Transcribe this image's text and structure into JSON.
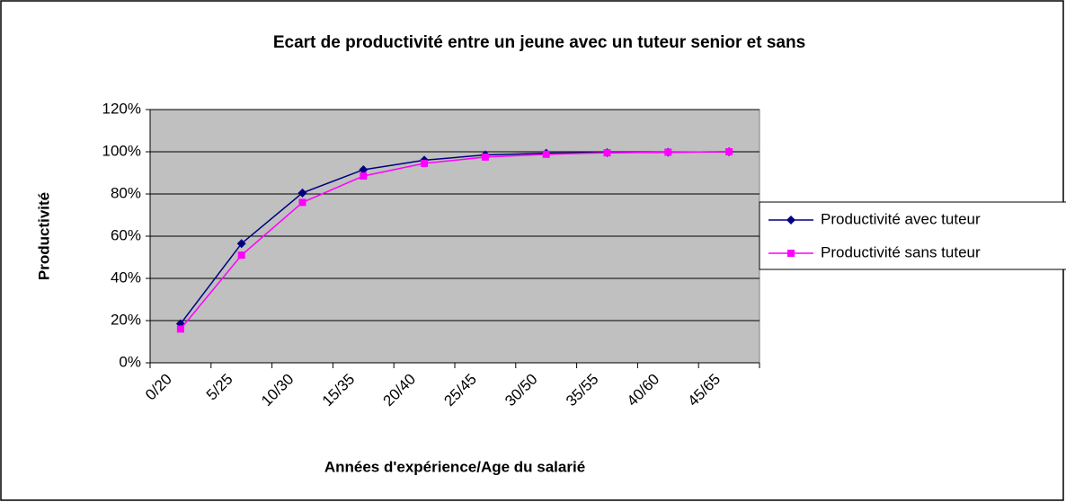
{
  "chart_data": {
    "type": "line",
    "title": "Ecart de productivité entre un jeune avec un tuteur senior et sans",
    "xlabel": "Années d'expérience/Age du salarié",
    "ylabel": "Productivité",
    "categories": [
      "0/20",
      "5/25",
      "10/30",
      "15/35",
      "20/40",
      "25/45",
      "30/50",
      "35/55",
      "40/60",
      "45/65"
    ],
    "series": [
      {
        "name": "Productivité avec tuteur",
        "color": "#000080",
        "marker": "diamond",
        "values": [
          18.5,
          56.5,
          80.5,
          91.5,
          96,
          98.5,
          99.3,
          99.6,
          99.8,
          100
        ]
      },
      {
        "name": "Productivité sans tuteur",
        "color": "#ff00ff",
        "marker": "square",
        "values": [
          16,
          51,
          76,
          88.5,
          94.5,
          97.5,
          98.8,
          99.5,
          99.8,
          100
        ]
      }
    ],
    "ylim": [
      0,
      120
    ],
    "yticks": [
      {
        "value": 0,
        "label": "0%"
      },
      {
        "value": 20,
        "label": "20%"
      },
      {
        "value": 40,
        "label": "40%"
      },
      {
        "value": 60,
        "label": "60%"
      },
      {
        "value": 80,
        "label": "80%"
      },
      {
        "value": 100,
        "label": "100%"
      },
      {
        "value": 120,
        "label": "120%"
      }
    ],
    "grid": true,
    "legend": "right"
  }
}
